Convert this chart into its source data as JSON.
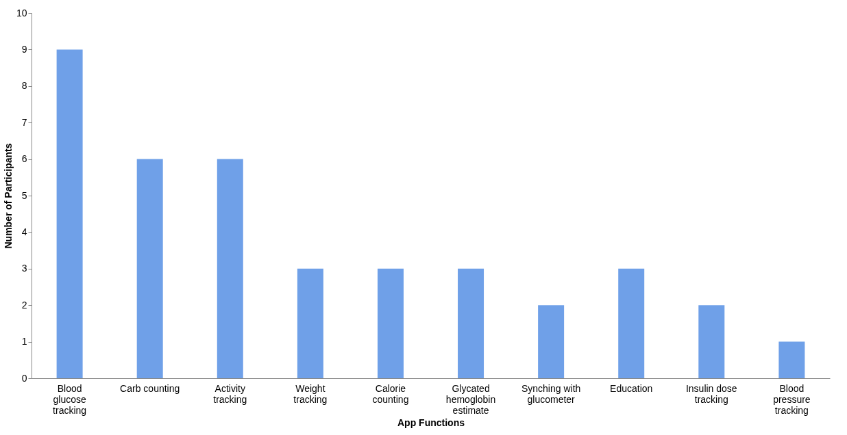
{
  "chart_data": {
    "type": "bar",
    "xlabel": "App Functions",
    "ylabel": "Number of Participants",
    "categories": [
      "Blood\nglucose\ntracking",
      "Carb counting",
      "Activity\ntracking",
      "Weight\ntracking",
      "Calorie\ncounting",
      "Glycated\nhemoglobin\nestimate",
      "Synching with\nglucometer",
      "Education",
      "Insulin dose\ntracking",
      "Blood\npressure\ntracking"
    ],
    "values": [
      9,
      6,
      6,
      3,
      3,
      3,
      2,
      3,
      2,
      1
    ],
    "color": "#6fa0e8",
    "ylim": [
      0,
      10
    ],
    "yticks": [
      0,
      1,
      2,
      3,
      4,
      5,
      6,
      7,
      8,
      9,
      10
    ],
    "grid": false
  }
}
